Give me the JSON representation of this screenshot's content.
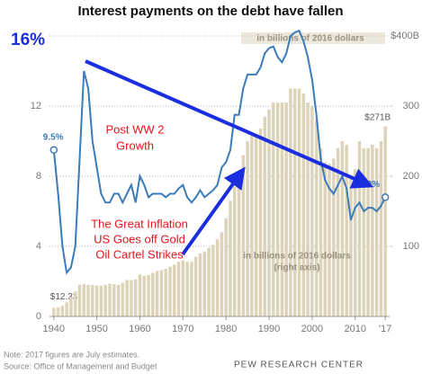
{
  "chart_data": {
    "type": "combo",
    "title": "Interest payments on the debt have fallen",
    "y2_note": "in billions of 2016 dollars",
    "x": [
      1940,
      1941,
      1942,
      1943,
      1944,
      1945,
      1946,
      1947,
      1948,
      1949,
      1950,
      1951,
      1952,
      1953,
      1954,
      1955,
      1956,
      1957,
      1958,
      1959,
      1960,
      1961,
      1962,
      1963,
      1964,
      1965,
      1966,
      1967,
      1968,
      1969,
      1970,
      1971,
      1972,
      1973,
      1974,
      1975,
      1976,
      1977,
      1978,
      1979,
      1980,
      1981,
      1982,
      1983,
      1984,
      1985,
      1986,
      1987,
      1988,
      1989,
      1990,
      1991,
      1992,
      1993,
      1994,
      1995,
      1996,
      1997,
      1998,
      1999,
      2000,
      2001,
      2002,
      2003,
      2004,
      2005,
      2006,
      2007,
      2008,
      2009,
      2010,
      2011,
      2012,
      2013,
      2014,
      2015,
      2016,
      2017
    ],
    "xlim": [
      1939,
      2018
    ],
    "xticks": [
      1940,
      1950,
      1960,
      1970,
      1980,
      1990,
      2000,
      2010,
      {
        "value": 2017,
        "label": "'17"
      }
    ],
    "ylim": [
      0,
      16
    ],
    "yticks": [
      0,
      4,
      8,
      12,
      {
        "value": 16,
        "label": "16%"
      }
    ],
    "y2lim": [
      0,
      400
    ],
    "y2ticks": [
      100,
      200,
      300,
      {
        "value": 400,
        "label": "$400B"
      }
    ],
    "grid": true,
    "series": [
      {
        "type": "bar",
        "axis": "y2",
        "color": "#dcd3b8",
        "values": [
          12.33,
          13,
          15,
          20,
          28,
          36,
          45,
          46,
          45,
          45,
          44,
          44,
          45,
          47,
          46,
          45,
          48,
          52,
          52,
          53,
          60,
          58,
          59,
          62,
          65,
          66,
          68,
          71,
          74,
          78,
          80,
          78,
          78,
          85,
          90,
          92,
          98,
          102,
          110,
          120,
          140,
          165,
          185,
          200,
          230,
          250,
          258,
          258,
          268,
          285,
          295,
          305,
          305,
          305,
          305,
          325,
          325,
          325,
          318,
          305,
          300,
          280,
          240,
          220,
          218,
          225,
          240,
          250,
          245,
          200,
          210,
          250,
          240,
          240,
          245,
          240,
          250,
          271
        ],
        "value_labels": [
          "$12.33",
          null,
          null,
          null,
          null,
          null,
          null,
          null,
          null,
          null,
          null,
          null,
          null,
          null,
          null,
          null,
          null,
          null,
          null,
          null,
          null,
          null,
          null,
          null,
          null,
          null,
          null,
          null,
          null,
          null,
          null,
          null,
          null,
          null,
          null,
          null,
          null,
          null,
          null,
          null,
          null,
          null,
          null,
          null,
          null,
          null,
          null,
          null,
          null,
          null,
          null,
          null,
          null,
          null,
          null,
          null,
          null,
          null,
          null,
          null,
          null,
          null,
          null,
          null,
          null,
          null,
          null,
          null,
          null,
          null,
          null,
          null,
          null,
          null,
          null,
          null,
          null,
          "$271B"
        ]
      },
      {
        "type": "line",
        "color": "#3b7bb8",
        "values": [
          9.5,
          7,
          4,
          2.5,
          2.8,
          4,
          9,
          14,
          13,
          10,
          8.5,
          7,
          6.5,
          6.5,
          7,
          7,
          6.5,
          7,
          7.5,
          6.5,
          8,
          7.5,
          6.8,
          7,
          7,
          7,
          6.8,
          7,
          7,
          7.3,
          7.5,
          6.8,
          6.5,
          6.8,
          7.2,
          6.8,
          7,
          7.2,
          7.5,
          8.5,
          8.8,
          9.5,
          11.5,
          11.5,
          13,
          13.8,
          13.8,
          13.8,
          14.2,
          15,
          15.3,
          15.4,
          14.8,
          14.5,
          15,
          16,
          16.2,
          16.3,
          15.7,
          14.8,
          13.5,
          11.5,
          9,
          7.8,
          7.3,
          7,
          7.5,
          8,
          7.3,
          5.5,
          6.2,
          6.5,
          6,
          6.2,
          6.2,
          6,
          6.3,
          6.8
        ],
        "value_labels": [
          "9.5%",
          null,
          null,
          null,
          null,
          null,
          null,
          null,
          null,
          null,
          null,
          null,
          null,
          null,
          null,
          null,
          null,
          null,
          null,
          null,
          null,
          null,
          null,
          null,
          null,
          null,
          null,
          null,
          null,
          null,
          null,
          null,
          null,
          null,
          null,
          null,
          null,
          null,
          null,
          null,
          null,
          null,
          null,
          null,
          null,
          null,
          null,
          null,
          null,
          null,
          null,
          null,
          null,
          null,
          null,
          null,
          null,
          null,
          null,
          null,
          null,
          null,
          null,
          null,
          null,
          null,
          null,
          null,
          null,
          null,
          null,
          null,
          null,
          null,
          null,
          null,
          null,
          "6.8%"
        ]
      }
    ],
    "annotations": [
      "Post WW 2",
      "Growth",
      "The Great Inflation",
      "US Goes off Gold",
      "Oil Cartel Strikes",
      "in billions of 2016 dollars",
      "(right axis)"
    ],
    "footer": [
      "Note: 2017 figures are July estimates.",
      "Source: Office of Management and Budget",
      "PEW RESEARCH CENTER"
    ]
  }
}
